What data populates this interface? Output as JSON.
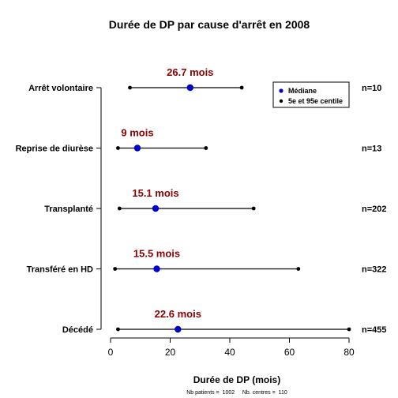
{
  "chart_data": {
    "type": "interval",
    "title": "Durée de DP par cause d'arrêt en 2008",
    "xlabel": "Durée de DP (mois)",
    "xlim": [
      0,
      80
    ],
    "xticks": [
      "0",
      "20",
      "40",
      "60",
      "80"
    ],
    "categories": [
      {
        "label": "Arrêt volontaire",
        "low": 6.5,
        "median": 26.7,
        "high": 44.0,
        "median_label": "26.7 mois",
        "n": "n=10"
      },
      {
        "label": "Reprise de diurèse",
        "low": 2.5,
        "median": 9.0,
        "high": 32.0,
        "median_label": "9 mois",
        "n": "n=13"
      },
      {
        "label": "Transplanté",
        "low": 3.0,
        "median": 15.1,
        "high": 48.0,
        "median_label": "15.1 mois",
        "n": "n=202"
      },
      {
        "label": "Transféré en HD",
        "low": 1.5,
        "median": 15.5,
        "high": 63.0,
        "median_label": "15.5 mois",
        "n": "n=322"
      },
      {
        "label": "Décédé",
        "low": 2.5,
        "median": 22.6,
        "high": 80.0,
        "median_label": "22.6 mois",
        "n": "n=455"
      }
    ],
    "legend": {
      "placement": "top-right",
      "items": [
        {
          "label": "Médiane",
          "color": "#0000cc"
        },
        {
          "label": "5e et 95e centile",
          "color": "#000000"
        }
      ]
    },
    "footnote": "Nb patients =  1002     Nb. centres =  110",
    "colors": {
      "median": "#0000cc",
      "label": "#8b0000",
      "line": "#000000"
    }
  }
}
